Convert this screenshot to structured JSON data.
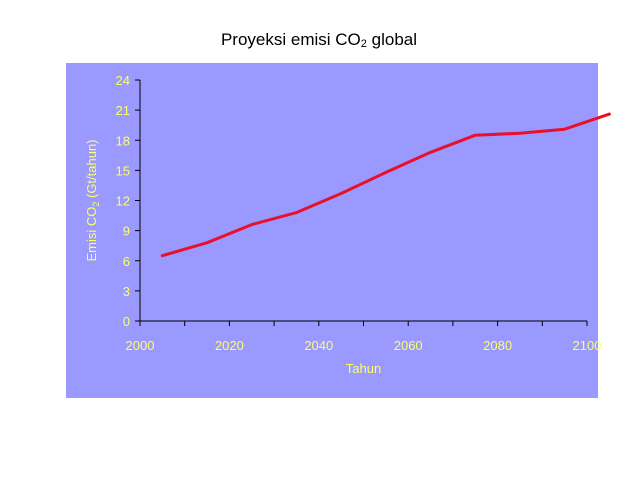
{
  "title": {
    "prefix": "Proyeksi emisi CO",
    "sub": "2",
    "suffix": " global"
  },
  "chart_data": {
    "type": "line",
    "title": "Proyeksi emisi CO2 global",
    "xlabel": "Tahun",
    "ylabel": {
      "prefix": "Emisi CO",
      "sub": "2",
      "suffix": " (Gt/tahun)"
    },
    "xlim": [
      2000,
      2100
    ],
    "ylim": [
      0,
      24
    ],
    "xticks": [
      "2000",
      "2020",
      "2040",
      "2060",
      "2080",
      "2100"
    ],
    "yticks": [
      "0",
      "3",
      "6",
      "9",
      "12",
      "15",
      "18",
      "21",
      "24"
    ],
    "grid": false,
    "legend": "none",
    "colors": {
      "background": "#9999ff",
      "line": "#e8102a",
      "text": "#ffff66",
      "axis": "#000000"
    },
    "series": [
      {
        "x": [
          2005,
          2015,
          2025,
          2035,
          2045,
          2055,
          2065,
          2075,
          2085,
          2095,
          2105
        ],
        "values": [
          6.5,
          7.8,
          9.6,
          10.8,
          12.7,
          14.8,
          16.8,
          18.5,
          18.7,
          19.1,
          20.6
        ]
      }
    ]
  }
}
